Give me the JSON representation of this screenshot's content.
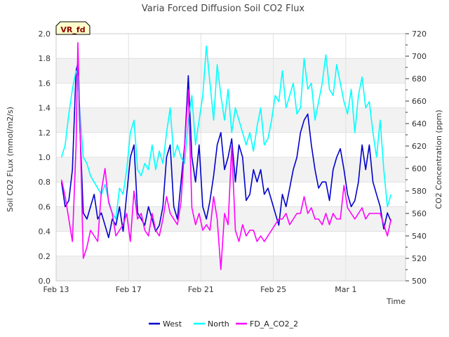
{
  "chart_data": {
    "type": "line",
    "title": "Varia Forced Diffusion Soil CO2 Flux",
    "badge": "VR_fd",
    "xlabel": "Time",
    "ylabel": "Soil CO2 FLux (mmol/m2/s)",
    "y2label": "CO2 Concentration (ppm)",
    "xlim": [
      13,
      32.3
    ],
    "ylim": [
      0,
      2.0
    ],
    "y2lim": [
      500,
      720
    ],
    "x_ticks": [
      {
        "value": 13,
        "label": "Feb 13"
      },
      {
        "value": 17,
        "label": "Feb 17"
      },
      {
        "value": 21,
        "label": "Feb 21"
      },
      {
        "value": 25,
        "label": "Feb 25"
      },
      {
        "value": 29,
        "label": "Mar 1"
      }
    ],
    "y_ticks": [
      "0.0",
      "0.2",
      "0.4",
      "0.6",
      "0.8",
      "1.0",
      "1.2",
      "1.4",
      "1.6",
      "1.8",
      "2.0"
    ],
    "y2_ticks": [
      "500",
      "520",
      "540",
      "560",
      "580",
      "600",
      "620",
      "640",
      "660",
      "680",
      "700",
      "720"
    ],
    "grid": true,
    "legend_position": "bottom-center",
    "series": [
      {
        "name": "West",
        "color": "#0000cc",
        "axis": "left",
        "x": [
          13.3,
          13.5,
          13.7,
          13.9,
          14.1,
          14.2,
          14.3,
          14.5,
          14.7,
          14.9,
          15.1,
          15.3,
          15.5,
          15.7,
          15.9,
          16.1,
          16.3,
          16.5,
          16.7,
          16.9,
          17.1,
          17.3,
          17.5,
          17.7,
          17.9,
          18.1,
          18.3,
          18.5,
          18.7,
          18.9,
          19.1,
          19.3,
          19.5,
          19.7,
          19.9,
          20.1,
          20.3,
          20.5,
          20.7,
          20.9,
          21.1,
          21.3,
          21.5,
          21.7,
          21.9,
          22.1,
          22.3,
          22.5,
          22.7,
          22.9,
          23.1,
          23.3,
          23.5,
          23.7,
          23.9,
          24.1,
          24.3,
          24.5,
          24.7,
          24.9,
          25.1,
          25.3,
          25.5,
          25.7,
          25.9,
          26.1,
          26.3,
          26.5,
          26.7,
          26.9,
          27.1,
          27.3,
          27.5,
          27.7,
          27.9,
          28.1,
          28.3,
          28.5,
          28.7,
          28.9,
          29.1,
          29.3,
          29.5,
          29.7,
          29.9,
          30.1,
          30.3,
          30.5,
          30.7,
          30.9,
          31.1,
          31.3,
          31.5
        ],
        "values": [
          0.8,
          0.6,
          0.65,
          0.9,
          1.7,
          1.76,
          1.3,
          0.55,
          0.5,
          0.6,
          0.7,
          0.5,
          0.55,
          0.45,
          0.35,
          0.5,
          0.45,
          0.6,
          0.4,
          0.7,
          1.0,
          1.1,
          0.55,
          0.5,
          0.45,
          0.6,
          0.5,
          0.4,
          0.45,
          0.6,
          1.0,
          1.1,
          0.6,
          0.5,
          0.8,
          1.1,
          1.66,
          1.0,
          0.8,
          1.1,
          0.6,
          0.5,
          0.65,
          0.85,
          1.1,
          1.2,
          0.9,
          1.0,
          1.15,
          0.8,
          1.1,
          1.0,
          0.65,
          0.7,
          0.9,
          0.8,
          0.9,
          0.7,
          0.75,
          0.65,
          0.55,
          0.45,
          0.7,
          0.6,
          0.75,
          0.9,
          1.0,
          1.2,
          1.3,
          1.35,
          1.1,
          0.9,
          0.75,
          0.8,
          0.8,
          0.65,
          0.9,
          1.0,
          1.07,
          0.9,
          0.7,
          0.6,
          0.65,
          0.8,
          1.1,
          0.9,
          1.1,
          0.8,
          0.7,
          0.6,
          0.42,
          0.55,
          0.48
        ]
      },
      {
        "name": "North",
        "color": "#00ffff",
        "axis": "left",
        "x": [
          13.3,
          13.5,
          13.7,
          13.9,
          14.1,
          14.2,
          14.3,
          14.5,
          14.7,
          14.9,
          15.1,
          15.3,
          15.5,
          15.7,
          15.9,
          16.1,
          16.3,
          16.5,
          16.7,
          16.9,
          17.1,
          17.3,
          17.5,
          17.7,
          17.9,
          18.1,
          18.3,
          18.5,
          18.7,
          18.9,
          19.1,
          19.3,
          19.5,
          19.7,
          19.9,
          20.1,
          20.3,
          20.5,
          20.7,
          20.9,
          21.1,
          21.3,
          21.5,
          21.7,
          21.9,
          22.1,
          22.3,
          22.5,
          22.7,
          22.9,
          23.1,
          23.3,
          23.5,
          23.7,
          23.9,
          24.1,
          24.3,
          24.5,
          24.7,
          24.9,
          25.1,
          25.3,
          25.5,
          25.7,
          25.9,
          26.1,
          26.3,
          26.5,
          26.7,
          26.9,
          27.1,
          27.3,
          27.5,
          27.7,
          27.9,
          28.1,
          28.3,
          28.5,
          28.7,
          28.9,
          29.1,
          29.3,
          29.5,
          29.7,
          29.9,
          30.1,
          30.3,
          30.5,
          30.7,
          30.9,
          31.1,
          31.3,
          31.5
        ],
        "values": [
          1.0,
          1.1,
          1.35,
          1.55,
          1.7,
          1.65,
          1.4,
          1.0,
          0.95,
          0.85,
          0.8,
          0.75,
          0.7,
          0.78,
          0.65,
          0.55,
          0.5,
          0.75,
          0.7,
          0.9,
          1.2,
          1.3,
          0.9,
          0.85,
          0.95,
          0.9,
          1.1,
          0.9,
          1.05,
          0.95,
          1.2,
          1.4,
          1.0,
          1.1,
          1.0,
          0.95,
          1.3,
          1.5,
          1.1,
          1.3,
          1.5,
          1.9,
          1.6,
          1.3,
          1.75,
          1.5,
          1.3,
          1.55,
          1.2,
          1.4,
          1.3,
          1.2,
          1.1,
          1.2,
          1.05,
          1.25,
          1.4,
          1.1,
          1.15,
          1.3,
          1.5,
          1.45,
          1.7,
          1.4,
          1.5,
          1.6,
          1.35,
          1.4,
          1.8,
          1.55,
          1.6,
          1.3,
          1.45,
          1.6,
          1.83,
          1.55,
          1.5,
          1.75,
          1.6,
          1.45,
          1.35,
          1.55,
          1.2,
          1.5,
          1.65,
          1.4,
          1.45,
          1.2,
          1.0,
          1.3,
          0.9,
          0.6,
          0.7
        ]
      },
      {
        "name": "FD_A_CO2_2",
        "color": "#ff00ff",
        "axis": "right",
        "x": [
          13.3,
          13.5,
          13.7,
          13.9,
          14.1,
          14.2,
          14.3,
          14.5,
          14.7,
          14.9,
          15.1,
          15.3,
          15.5,
          15.7,
          15.9,
          16.1,
          16.3,
          16.5,
          16.7,
          16.9,
          17.1,
          17.3,
          17.5,
          17.7,
          17.9,
          18.1,
          18.3,
          18.5,
          18.7,
          18.9,
          19.1,
          19.3,
          19.5,
          19.7,
          19.9,
          20.1,
          20.3,
          20.5,
          20.7,
          20.9,
          21.1,
          21.3,
          21.5,
          21.7,
          21.9,
          22.1,
          22.3,
          22.5,
          22.7,
          22.9,
          23.1,
          23.3,
          23.5,
          23.7,
          23.9,
          24.1,
          24.3,
          24.5,
          24.7,
          24.9,
          25.1,
          25.3,
          25.5,
          25.7,
          25.9,
          26.1,
          26.3,
          26.5,
          26.7,
          26.9,
          27.1,
          27.3,
          27.5,
          27.7,
          27.9,
          28.1,
          28.3,
          28.5,
          28.7,
          28.9,
          29.1,
          29.3,
          29.5,
          29.7,
          29.9,
          30.1,
          30.3,
          30.5,
          30.7,
          30.9,
          31.1,
          31.3,
          31.5
        ],
        "values": [
          590,
          575,
          555,
          535,
          620,
          712,
          650,
          520,
          530,
          545,
          540,
          535,
          580,
          600,
          570,
          560,
          540,
          545,
          550,
          560,
          535,
          580,
          555,
          560,
          545,
          540,
          560,
          545,
          540,
          555,
          575,
          560,
          555,
          550,
          570,
          620,
          670,
          565,
          550,
          560,
          545,
          550,
          545,
          575,
          555,
          510,
          560,
          550,
          620,
          545,
          535,
          550,
          540,
          545,
          545,
          535,
          540,
          535,
          540,
          545,
          550,
          555,
          555,
          560,
          550,
          555,
          560,
          560,
          575,
          560,
          565,
          555,
          555,
          550,
          560,
          550,
          560,
          555,
          555,
          585,
          565,
          560,
          555,
          560,
          565,
          555,
          560,
          560,
          560,
          560,
          550,
          540,
          555
        ]
      }
    ]
  }
}
